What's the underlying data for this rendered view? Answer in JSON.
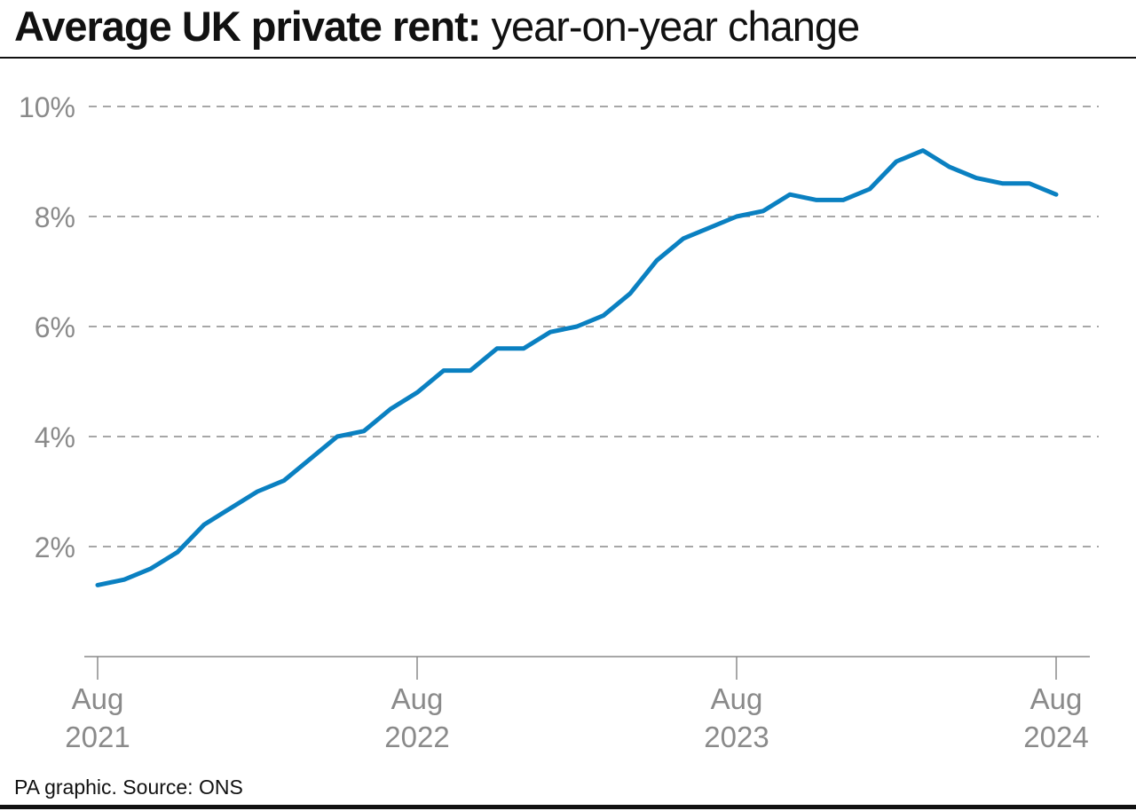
{
  "chart_data": {
    "type": "line",
    "title_bold": "Average UK private rent:",
    "title_rest": " year-on-year change",
    "xlabel": "",
    "ylabel": "",
    "ylim": [
      0,
      10
    ],
    "yticks": [
      2,
      4,
      6,
      8,
      10
    ],
    "ytick_labels": [
      "2%",
      "4%",
      "6%",
      "8%",
      "10%"
    ],
    "xticks": [
      {
        "month_index": 0,
        "line1": "Aug",
        "line2": "2021"
      },
      {
        "month_index": 12,
        "line1": "Aug",
        "line2": "2022"
      },
      {
        "month_index": 24,
        "line1": "Aug",
        "line2": "2023"
      },
      {
        "month_index": 36,
        "line1": "Aug",
        "line2": "2024"
      }
    ],
    "x": [
      "2021-08",
      "2021-09",
      "2021-10",
      "2021-11",
      "2021-12",
      "2022-01",
      "2022-02",
      "2022-03",
      "2022-04",
      "2022-05",
      "2022-06",
      "2022-07",
      "2022-08",
      "2022-09",
      "2022-10",
      "2022-11",
      "2022-12",
      "2023-01",
      "2023-02",
      "2023-03",
      "2023-04",
      "2023-05",
      "2023-06",
      "2023-07",
      "2023-08",
      "2023-09",
      "2023-10",
      "2023-11",
      "2023-12",
      "2024-01",
      "2024-02",
      "2024-03",
      "2024-04",
      "2024-05",
      "2024-06",
      "2024-07",
      "2024-08"
    ],
    "values": [
      1.3,
      1.4,
      1.6,
      1.9,
      2.4,
      2.7,
      3.0,
      3.2,
      3.6,
      4.0,
      4.1,
      4.5,
      4.8,
      5.2,
      5.2,
      5.6,
      5.6,
      5.9,
      6.0,
      6.2,
      6.6,
      7.2,
      7.6,
      7.8,
      8.0,
      8.1,
      8.4,
      8.3,
      8.3,
      8.5,
      9.0,
      9.2,
      8.9,
      8.7,
      8.6,
      8.6,
      8.4
    ],
    "grid": "horizontal dashed",
    "legend": "none",
    "line_color": "#0a80c1",
    "grid_color": "#8a8a8a"
  },
  "footer": "PA graphic. Source: ONS"
}
